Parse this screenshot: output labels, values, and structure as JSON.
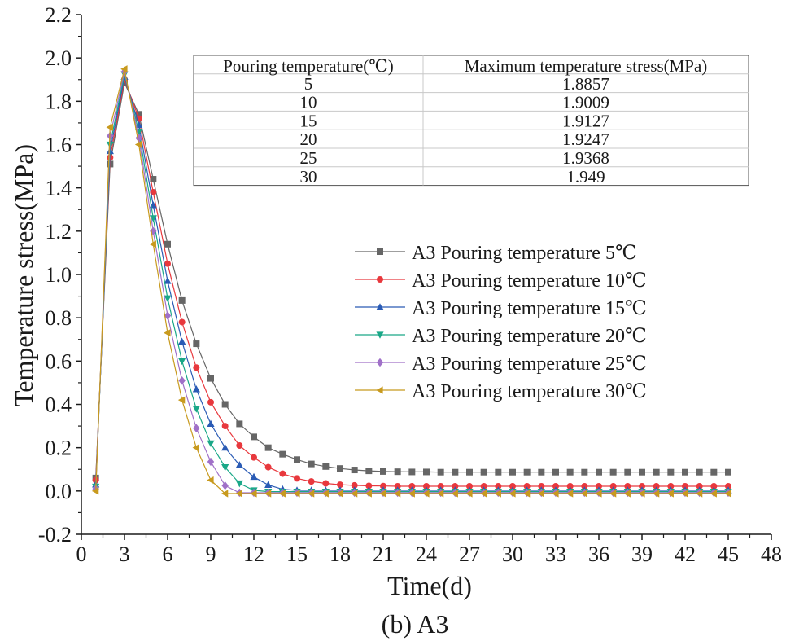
{
  "chart_data": {
    "type": "line",
    "title": "",
    "caption": "(b) A3",
    "xlabel": "Time(d)",
    "ylabel": "Temperature stress(MPa)",
    "xlim": [
      0,
      48
    ],
    "ylim": [
      -0.2,
      2.2
    ],
    "xticks": [
      0,
      3,
      6,
      9,
      12,
      15,
      18,
      21,
      24,
      27,
      30,
      33,
      36,
      39,
      42,
      45,
      48
    ],
    "xtick_labels": [
      "0",
      "3",
      "6",
      "9",
      "12",
      "15",
      "18",
      "21",
      "24",
      "27",
      "30",
      "33",
      "36",
      "39",
      "42",
      "45",
      "48"
    ],
    "yticks": [
      -0.2,
      0.0,
      0.2,
      0.4,
      0.6,
      0.8,
      1.0,
      1.2,
      1.4,
      1.6,
      1.8,
      2.0,
      2.2
    ],
    "ytick_labels": [
      "-0.2",
      "0.0",
      "0.2",
      "0.4",
      "0.6",
      "0.8",
      "1.0",
      "1.2",
      "1.4",
      "1.6",
      "1.8",
      "2.0",
      "2.2"
    ],
    "grid": false,
    "legend_position": "center-right",
    "x": [
      1,
      2,
      3,
      4,
      5,
      6,
      7,
      8,
      9,
      10,
      11,
      12,
      13,
      14,
      15,
      16,
      17,
      18,
      19,
      20,
      21,
      22,
      23,
      24,
      25,
      26,
      27,
      28,
      29,
      30,
      31,
      32,
      33,
      34,
      35,
      36,
      37,
      38,
      39,
      40,
      41,
      42,
      43,
      44,
      45
    ],
    "series": [
      {
        "name": "A3 Pouring temperature 5℃",
        "color": "#666666",
        "marker": "square",
        "values": [
          0.06,
          1.51,
          1.8857,
          1.74,
          1.44,
          1.14,
          0.88,
          0.68,
          0.52,
          0.4,
          0.31,
          0.25,
          0.2,
          0.17,
          0.145,
          0.125,
          0.113,
          0.104,
          0.097,
          0.093,
          0.09,
          0.089,
          0.088,
          0.088,
          0.087,
          0.087,
          0.087,
          0.087,
          0.087,
          0.087,
          0.087,
          0.087,
          0.087,
          0.087,
          0.087,
          0.087,
          0.087,
          0.087,
          0.087,
          0.087,
          0.087,
          0.087,
          0.087,
          0.087,
          0.087
        ]
      },
      {
        "name": "A3 Pouring temperature 10℃",
        "color": "#e8383d",
        "marker": "circle",
        "values": [
          0.05,
          1.54,
          1.9009,
          1.72,
          1.38,
          1.05,
          0.78,
          0.57,
          0.41,
          0.3,
          0.21,
          0.155,
          0.11,
          0.08,
          0.058,
          0.044,
          0.035,
          0.029,
          0.026,
          0.024,
          0.023,
          0.022,
          0.022,
          0.022,
          0.022,
          0.022,
          0.022,
          0.022,
          0.022,
          0.022,
          0.022,
          0.022,
          0.022,
          0.022,
          0.022,
          0.022,
          0.022,
          0.022,
          0.022,
          0.022,
          0.022,
          0.022,
          0.022,
          0.022,
          0.022
        ]
      },
      {
        "name": "A3 Pouring temperature 15℃",
        "color": "#2a5bb5",
        "marker": "triangle-up",
        "values": [
          0.03,
          1.57,
          1.9127,
          1.69,
          1.32,
          0.97,
          0.69,
          0.47,
          0.31,
          0.2,
          0.12,
          0.065,
          0.028,
          0.008,
          0.003,
          0.003,
          0.003,
          0.003,
          0.003,
          0.003,
          0.003,
          0.003,
          0.003,
          0.003,
          0.003,
          0.003,
          0.003,
          0.003,
          0.003,
          0.003,
          0.003,
          0.003,
          0.003,
          0.003,
          0.003,
          0.003,
          0.003,
          0.003,
          0.003,
          0.003,
          0.003,
          0.003,
          0.003,
          0.003,
          0.003
        ]
      },
      {
        "name": "A3 Pouring temperature 20℃",
        "color": "#1aa888",
        "marker": "triangle-down",
        "values": [
          0.02,
          1.6,
          1.9247,
          1.66,
          1.26,
          0.89,
          0.6,
          0.38,
          0.22,
          0.11,
          0.035,
          0.003,
          -0.003,
          -0.003,
          -0.003,
          -0.003,
          -0.003,
          -0.003,
          -0.003,
          -0.003,
          -0.003,
          -0.003,
          -0.003,
          -0.003,
          -0.003,
          -0.003,
          -0.003,
          -0.003,
          -0.003,
          -0.003,
          -0.003,
          -0.003,
          -0.003,
          -0.003,
          -0.003,
          -0.003,
          -0.003,
          -0.003,
          -0.003,
          -0.003,
          -0.003,
          -0.003,
          -0.003,
          -0.003,
          -0.003
        ]
      },
      {
        "name": "A3 Pouring temperature 25℃",
        "color": "#a070c8",
        "marker": "diamond",
        "values": [
          0.01,
          1.64,
          1.9368,
          1.63,
          1.2,
          0.81,
          0.51,
          0.29,
          0.135,
          0.025,
          -0.008,
          -0.008,
          -0.008,
          -0.008,
          -0.008,
          -0.008,
          -0.008,
          -0.008,
          -0.008,
          -0.008,
          -0.008,
          -0.008,
          -0.008,
          -0.008,
          -0.008,
          -0.008,
          -0.008,
          -0.008,
          -0.008,
          -0.008,
          -0.008,
          -0.008,
          -0.008,
          -0.008,
          -0.008,
          -0.008,
          -0.008,
          -0.008,
          -0.008,
          -0.008,
          -0.008,
          -0.008,
          -0.008,
          -0.008,
          -0.008
        ]
      },
      {
        "name": "A3 Pouring temperature 30℃",
        "color": "#c89a1e",
        "marker": "triangle-left",
        "values": [
          0.0,
          1.68,
          1.949,
          1.6,
          1.14,
          0.73,
          0.42,
          0.2,
          0.05,
          -0.012,
          -0.012,
          -0.012,
          -0.012,
          -0.012,
          -0.012,
          -0.012,
          -0.012,
          -0.012,
          -0.012,
          -0.012,
          -0.012,
          -0.012,
          -0.012,
          -0.012,
          -0.012,
          -0.012,
          -0.012,
          -0.012,
          -0.012,
          -0.012,
          -0.012,
          -0.012,
          -0.012,
          -0.012,
          -0.012,
          -0.012,
          -0.012,
          -0.012,
          -0.012,
          -0.012,
          -0.012,
          -0.012,
          -0.012,
          -0.012,
          -0.012
        ]
      }
    ],
    "table": {
      "headers": [
        "Pouring temperature(℃)",
        "Maximum temperature stress(MPa)"
      ],
      "rows": [
        [
          "5",
          "1.8857"
        ],
        [
          "10",
          "1.9009"
        ],
        [
          "15",
          "1.9127"
        ],
        [
          "20",
          "1.9247"
        ],
        [
          "25",
          "1.9368"
        ],
        [
          "30",
          "1.949"
        ]
      ]
    }
  }
}
